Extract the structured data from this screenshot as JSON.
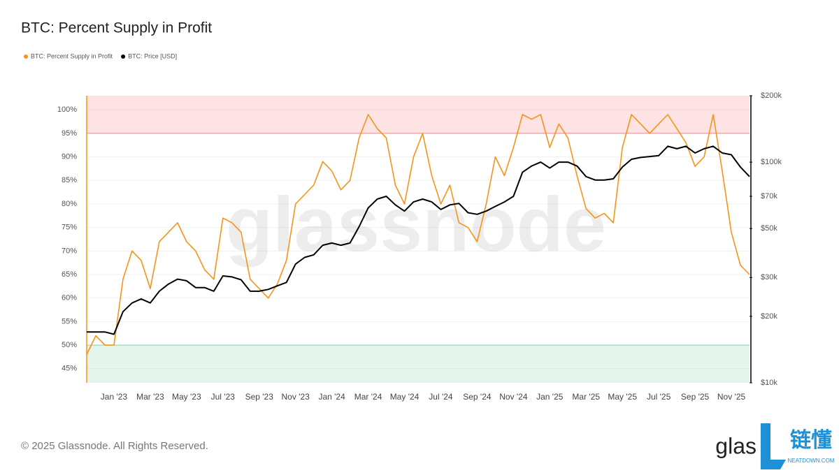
{
  "chart_data": {
    "type": "line",
    "title": "BTC: Percent Supply in Profit",
    "watermark": "glassnode",
    "footer": "© 2025 Glassnode. All Rights Reserved.",
    "logo": {
      "brand": "glas",
      "cn": "链懂",
      "site": "NEATDOWN.COM"
    },
    "categories": [
      null,
      null,
      null,
      "Jan '23",
      null,
      null,
      null,
      "Mar '23",
      null,
      null,
      null,
      "May '23",
      null,
      null,
      null,
      "Jul '23",
      null,
      null,
      null,
      "Sep '23",
      null,
      null,
      null,
      "Nov '23",
      null,
      null,
      null,
      "Jan '24",
      null,
      null,
      null,
      "Mar '24",
      null,
      null,
      null,
      "May '24",
      null,
      null,
      null,
      "Jul '24",
      null,
      null,
      null,
      "Sep '24",
      null,
      null,
      null,
      "Nov '24",
      null,
      null,
      null,
      "Jan '25",
      null,
      null,
      null,
      "Mar '25",
      null,
      null,
      null,
      "May '25",
      null,
      null,
      null,
      "Jul '25",
      null,
      null,
      null,
      "Sep '25",
      null,
      null,
      null,
      "Nov '25",
      null,
      null
    ],
    "series": [
      {
        "name": "BTC: Percent Supply in Profit",
        "color": "#f7931a",
        "axis": "y",
        "values": [
          48,
          52,
          50,
          50,
          64,
          70,
          68,
          62,
          72,
          74,
          76,
          72,
          70,
          66,
          64,
          77,
          76,
          74,
          64,
          62,
          60,
          63,
          68,
          80,
          82,
          84,
          89,
          87,
          83,
          85,
          94,
          99,
          96,
          94,
          84,
          80,
          90,
          95,
          86,
          80,
          84,
          76,
          75,
          72,
          80,
          90,
          86,
          92,
          99,
          98,
          99,
          92,
          97,
          94,
          86,
          79,
          77,
          78,
          76,
          92,
          99,
          97,
          95,
          97,
          99,
          96,
          93,
          88,
          90,
          99,
          87,
          74,
          67,
          65
        ]
      },
      {
        "name": "BTC: Price [USD]",
        "color": "#000000",
        "axis": "y2",
        "values": [
          17000,
          17000,
          17000,
          16600,
          21000,
          23000,
          24000,
          23000,
          26000,
          28000,
          29500,
          29000,
          27000,
          27000,
          26000,
          30500,
          30200,
          29300,
          26000,
          26000,
          26500,
          27500,
          28500,
          34500,
          37000,
          38000,
          42000,
          43000,
          42000,
          43000,
          51000,
          62000,
          68000,
          70000,
          64000,
          60000,
          66000,
          68000,
          66000,
          61000,
          64000,
          65000,
          59000,
          58000,
          60000,
          63000,
          66000,
          70000,
          90000,
          96000,
          100000,
          94000,
          100000,
          100000,
          96000,
          86000,
          83000,
          83000,
          84000,
          95000,
          103000,
          105000,
          106000,
          107000,
          118000,
          115000,
          118000,
          110000,
          115000,
          118000,
          110000,
          108000,
          95000,
          86000
        ]
      }
    ],
    "ylim": [
      42,
      103
    ],
    "yticks": [
      {
        "value": 45,
        "label": "45%"
      },
      {
        "value": 50,
        "label": "50%"
      },
      {
        "value": 55,
        "label": "55%"
      },
      {
        "value": 60,
        "label": "60%"
      },
      {
        "value": 65,
        "label": "65%"
      },
      {
        "value": 70,
        "label": "70%"
      },
      {
        "value": 75,
        "label": "75%"
      },
      {
        "value": 80,
        "label": "80%"
      },
      {
        "value": 85,
        "label": "85%"
      },
      {
        "value": 90,
        "label": "90%"
      },
      {
        "value": 95,
        "label": "95%"
      },
      {
        "value": 100,
        "label": "100%"
      }
    ],
    "y2lim": [
      10000,
      200000
    ],
    "y2scale": "log",
    "y2ticks": [
      {
        "value": 10000,
        "label": "$10k"
      },
      {
        "value": 20000,
        "label": "$20k"
      },
      {
        "value": 30000,
        "label": "$30k"
      },
      {
        "value": 50000,
        "label": "$50k"
      },
      {
        "value": 70000,
        "label": "$70k"
      },
      {
        "value": 100000,
        "label": "$100k"
      },
      {
        "value": 200000,
        "label": "$200k"
      }
    ],
    "bands": [
      {
        "range": [
          95,
          103
        ],
        "color": "#fde3e3"
      },
      {
        "range": [
          42,
          50
        ],
        "color": "#e4f5ec"
      }
    ],
    "grid": true,
    "legend": "top-left"
  }
}
